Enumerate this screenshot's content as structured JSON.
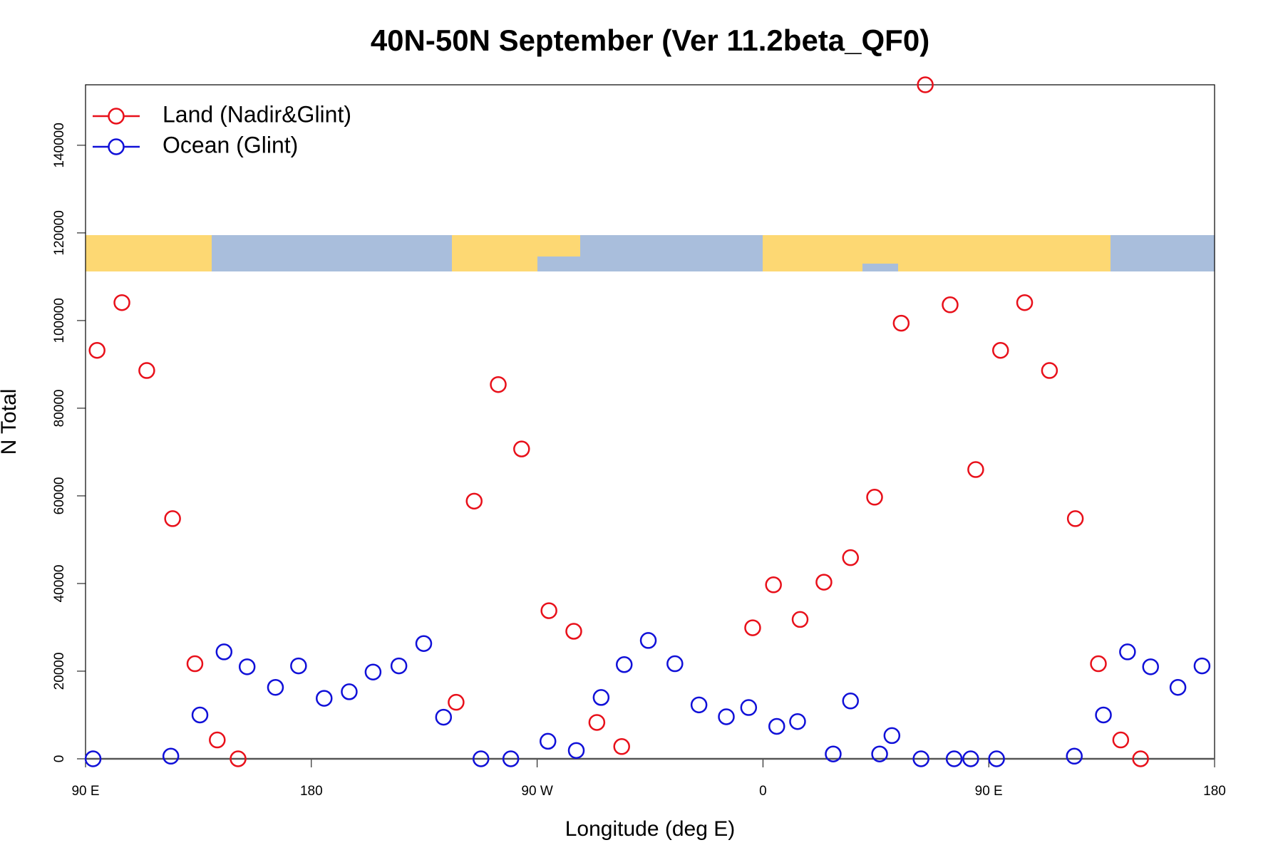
{
  "chart_data": {
    "type": "scatter",
    "title": "40N-50N September (Ver 11.2beta_QF0)",
    "xlabel": "Longitude (deg E)",
    "ylabel": "N Total",
    "xlim": [
      90,
      540
    ],
    "ylim": [
      0,
      153800
    ],
    "xticks": [
      {
        "value": 90,
        "label": "90 E"
      },
      180,
      {
        "value": 270,
        "label": "90 W"
      },
      {
        "value": 360,
        "label": "0"
      },
      {
        "value": 450,
        "label": "90 E"
      },
      {
        "value": 540,
        "label": "180"
      }
    ],
    "yticks": [
      0,
      20000,
      40000,
      60000,
      80000,
      100000,
      120000,
      140000
    ],
    "legend": "top-left",
    "series": [
      {
        "name": "Land (Nadir&Glint)",
        "color": "#e8101a",
        "x": [
          94.6,
          104.5,
          114.4,
          124.7,
          133.6,
          142.5,
          150.8,
          237.7,
          244.9,
          254.5,
          263.8,
          274.7,
          284.6,
          293.8,
          303.7,
          355.9,
          364.2,
          374.8,
          384.3,
          394.9,
          404.5,
          415.1,
          424.7,
          434.6,
          444.8,
          454.7,
          464.3,
          474.2,
          484.5,
          493.7,
          502.6,
          510.5
        ],
        "values": [
          93200,
          104100,
          88600,
          54800,
          21700,
          4300,
          0,
          12900,
          58800,
          85400,
          70700,
          33800,
          29100,
          8300,
          2800,
          29900,
          39700,
          31800,
          40300,
          45900,
          59700,
          99400,
          153800,
          103600,
          66000,
          93200,
          104100,
          88600,
          54800,
          21700,
          4300,
          0
        ]
      },
      {
        "name": "Ocean (Glint)",
        "color": "#1010d8",
        "x": [
          93.0,
          124.0,
          135.6,
          145.2,
          154.4,
          165.7,
          174.9,
          185.1,
          195.1,
          204.6,
          214.9,
          224.8,
          232.7,
          247.6,
          259.5,
          274.3,
          285.6,
          295.5,
          304.7,
          314.3,
          324.9,
          334.5,
          345.4,
          354.3,
          365.5,
          373.8,
          388.0,
          394.9,
          406.5,
          411.4,
          423.0,
          436.2,
          442.8,
          453.1,
          484.1,
          495.7,
          505.3,
          514.5,
          525.4,
          535.0
        ],
        "values": [
          0,
          600,
          10000,
          24400,
          21000,
          16300,
          21200,
          13800,
          15300,
          19800,
          21200,
          26300,
          9500,
          0,
          0,
          4000,
          1900,
          14000,
          21500,
          27000,
          21700,
          12300,
          9600,
          11700,
          7400,
          8500,
          1100,
          13200,
          1100,
          5300,
          0,
          0,
          0,
          0,
          600,
          10000,
          24400,
          21000,
          16300,
          21200
        ]
      }
    ]
  }
}
